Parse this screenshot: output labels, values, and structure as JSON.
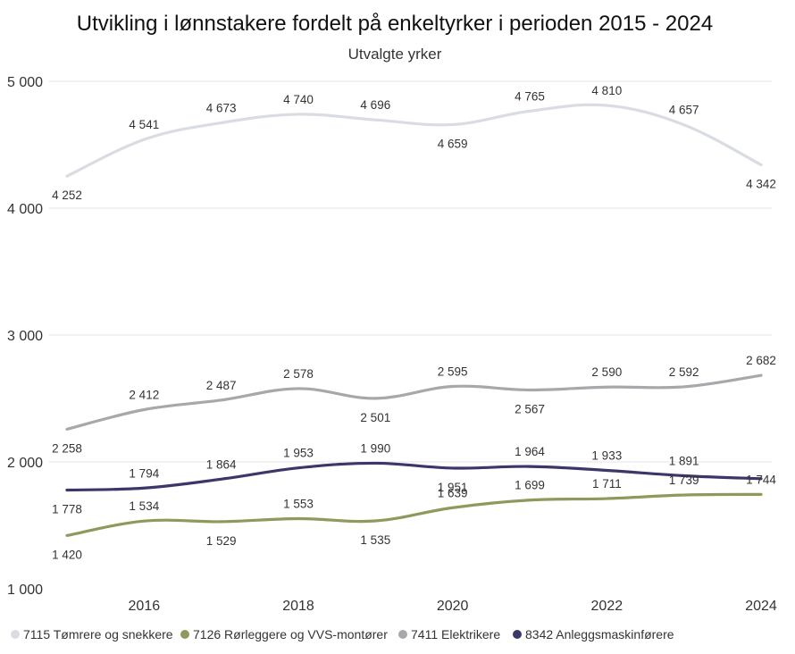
{
  "chart_data": {
    "type": "line",
    "title": "Utvikling i lønnstakere fordelt på enkeltyrker i perioden 2015 - 2024",
    "subtitle": "Utvalgte yrker",
    "x": [
      2015,
      2016,
      2017,
      2018,
      2019,
      2020,
      2021,
      2022,
      2023,
      2024
    ],
    "xticks": [
      "2016",
      "2018",
      "2020",
      "2022",
      "2024"
    ],
    "xtick_values": [
      2016,
      2018,
      2020,
      2022,
      2024
    ],
    "ylim": [
      1000,
      5000
    ],
    "yticks": [
      "1 000",
      "2 000",
      "3 000",
      "4 000",
      "5 000"
    ],
    "ytick_values": [
      1000,
      2000,
      3000,
      4000,
      5000
    ],
    "grid": true,
    "legend_position": "bottom",
    "series": [
      {
        "name": "7115 Tømrere og snekkere",
        "color": "#d9dde3",
        "values": [
          4252,
          4541,
          4673,
          4740,
          4696,
          4659,
          4765,
          4810,
          4657,
          4342
        ],
        "labels": [
          "4 252",
          "4 541",
          "4 673",
          "4 740",
          "4 696",
          "4 659",
          "4 765",
          "4 810",
          "4 657",
          "4 342"
        ],
        "label_side": [
          "below",
          "above",
          "above",
          "above",
          "above",
          "below",
          "above",
          "above",
          "above",
          "below"
        ]
      },
      {
        "name": "7126 Rørleggere og VVS-montører",
        "color": "#8d9a5b",
        "values": [
          1420,
          1534,
          1529,
          1553,
          1535,
          1639,
          1699,
          1711,
          1739,
          1744
        ],
        "labels": [
          "1 420",
          "1 534",
          "1 529",
          "1 553",
          "1 535",
          "1 639",
          "1 699",
          "1 711",
          "1 739",
          "1 744"
        ],
        "label_side": [
          "below",
          "above",
          "below",
          "above",
          "below",
          "above",
          "above",
          "above",
          "above",
          "above"
        ]
      },
      {
        "name": "7411 Elektrikere",
        "color": "#a6a8ab",
        "values": [
          2258,
          2412,
          2487,
          2578,
          2501,
          2595,
          2567,
          2590,
          2592,
          2682
        ],
        "labels": [
          "2 258",
          "2 412",
          "2 487",
          "2 578",
          "2 501",
          "2 595",
          "2 567",
          "2 590",
          "2 592",
          "2 682"
        ],
        "label_side": [
          "below",
          "above",
          "above",
          "above",
          "below",
          "above",
          "below",
          "above",
          "above",
          "above"
        ]
      },
      {
        "name": "8342 Anleggsmaskinførere",
        "color": "#3b3768",
        "values": [
          1778,
          1794,
          1864,
          1953,
          1990,
          1951,
          1964,
          1933,
          1891,
          1868
        ],
        "labels": [
          "1 778",
          "1 794",
          "1 864",
          "1 953",
          "1 990",
          "1 951",
          "1 964",
          "1 933",
          "1 891",
          ""
        ],
        "label_side": [
          "below",
          "above",
          "above",
          "above",
          "above",
          "below",
          "above",
          "above",
          "above",
          "above"
        ]
      }
    ]
  }
}
